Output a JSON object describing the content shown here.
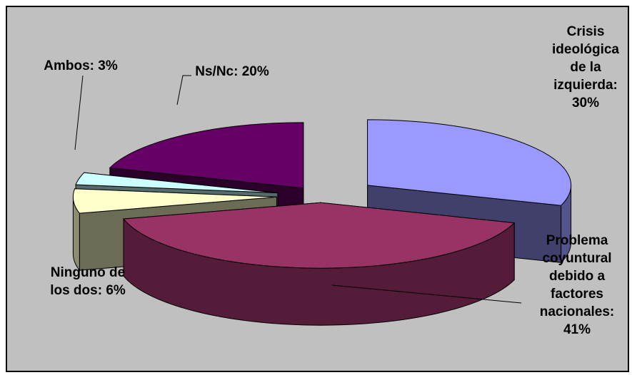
{
  "chart_data": {
    "type": "pie",
    "categories": [
      "Crisis ideológica de la izquierda",
      "Problema coyuntural debido a factores nacionales",
      "Ninguno de los dos",
      "Ambos",
      "Ns/Nc"
    ],
    "values": [
      30,
      41,
      6,
      3,
      20
    ],
    "labels": [
      [
        "Crisis",
        "ideológica",
        "de la",
        "izquierda:",
        "30%"
      ],
      [
        "Problema",
        "coyuntural",
        "debido a",
        "factores",
        "nacionales:",
        "41%"
      ],
      [
        "Ninguno de",
        "los dos: 6%"
      ],
      [
        "Ambos: 3%"
      ],
      [
        "Ns/Nc: 20%"
      ]
    ],
    "colors": {
      "Crisis ideológica de la izquierda": "#9999ff",
      "Problema coyuntural debido a factores nacionales": "#993366",
      "Ninguno de los dos": "#ffffcc",
      "Ambos": "#ccffff",
      "Ns/Nc": "#660066"
    },
    "style": "3d-exploded",
    "background": "#c0c0c0",
    "legend": "none"
  }
}
